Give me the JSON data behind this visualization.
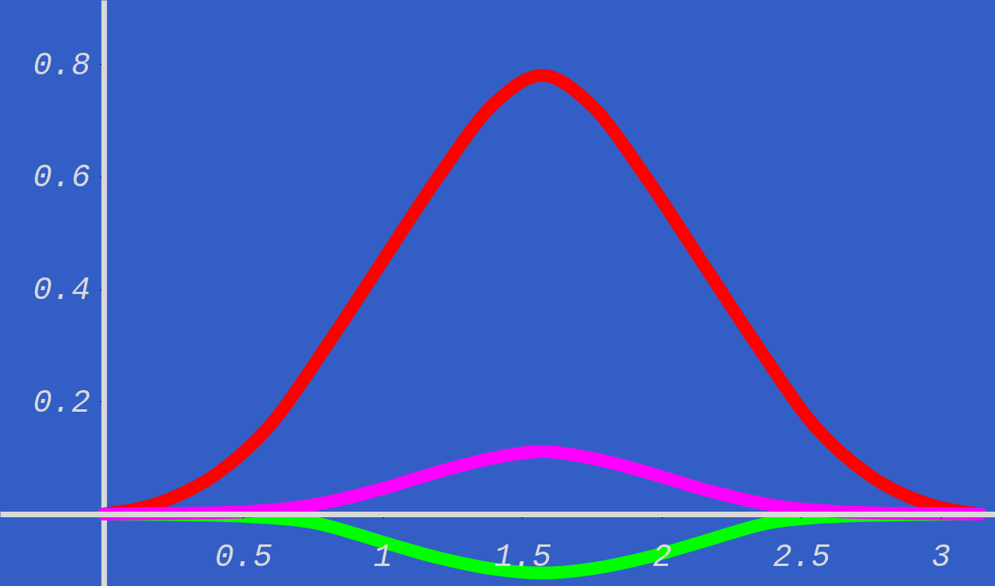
{
  "chart_data": {
    "type": "line",
    "xlim": [
      -0.372,
      3.195
    ],
    "ylim": [
      -0.128,
      0.914
    ],
    "xticks": [
      0.5,
      1,
      1.5,
      2,
      2.5,
      3
    ],
    "yticks": [
      0.2,
      0.4,
      0.6,
      0.8
    ],
    "grid": false,
    "marker": "none",
    "line_style": "solid",
    "series": [
      {
        "color": "#ff0000",
        "x": [
          0,
          0.2,
          0.4,
          0.6,
          0.8,
          1.0,
          1.2,
          1.4,
          1.571,
          1.742,
          1.942,
          2.142,
          2.342,
          2.542,
          2.742,
          2.942,
          3.1416
        ],
        "values": [
          0,
          0.02,
          0.07,
          0.16,
          0.3,
          0.45,
          0.6,
          0.73,
          0.78,
          0.73,
          0.6,
          0.45,
          0.3,
          0.16,
          0.07,
          0.02,
          0
        ]
      },
      {
        "color": "#00ff00",
        "x": [
          0,
          0.25,
          0.5,
          0.75,
          1.0,
          1.2,
          1.4,
          1.571,
          1.742,
          1.942,
          2.142,
          2.392,
          2.642,
          2.892,
          3.1416
        ],
        "values": [
          0,
          -0.001,
          -0.004,
          -0.015,
          -0.05,
          -0.078,
          -0.098,
          -0.105,
          -0.098,
          -0.078,
          -0.05,
          -0.015,
          -0.004,
          -0.001,
          0
        ]
      },
      {
        "color": "#ff00ff",
        "x": [
          0,
          0.25,
          0.5,
          0.75,
          1.0,
          1.2,
          1.4,
          1.571,
          1.742,
          1.942,
          2.142,
          2.392,
          2.642,
          2.892,
          3.1416
        ],
        "values": [
          0,
          0.001,
          0.004,
          0.016,
          0.045,
          0.075,
          0.1,
          0.111,
          0.1,
          0.075,
          0.045,
          0.016,
          0.004,
          0.001,
          0
        ]
      }
    ]
  }
}
